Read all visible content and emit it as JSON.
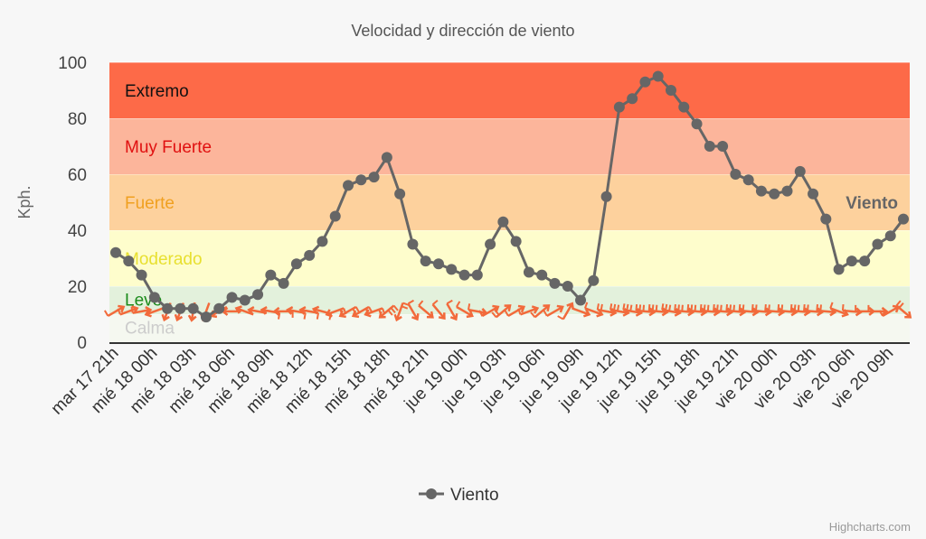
{
  "chart_data": {
    "type": "line",
    "title": "Velocidad y dirección de viento",
    "ylabel": "Kph.",
    "xlabel": "",
    "ylim": [
      0,
      100
    ],
    "yticks": [
      0,
      20,
      40,
      60,
      80,
      100
    ],
    "x_start_label_index": 0,
    "tick_labels": [
      "mar 17 21h",
      "mié 18 00h",
      "mié 18 03h",
      "mié 18 06h",
      "mié 18 09h",
      "mié 18 12h",
      "mié 18 15h",
      "mié 18 18h",
      "mié 18 21h",
      "jue 19 00h",
      "jue 19 03h",
      "jue 19 06h",
      "jue 19 09h",
      "jue 19 12h",
      "jue 19 15h",
      "jue 19 18h",
      "jue 19 21h",
      "vie 20 00h",
      "vie 20 03h",
      "vie 20 06h",
      "vie 20 09h"
    ],
    "series": [
      {
        "name": "Viento",
        "color": "#666666",
        "values": [
          32,
          29,
          24,
          16,
          12,
          12,
          12,
          9,
          12,
          16,
          15,
          17,
          24,
          21,
          28,
          31,
          36,
          45,
          56,
          58,
          59,
          66,
          53,
          35,
          29,
          28,
          26,
          24,
          24,
          35,
          43,
          36,
          25,
          24,
          21,
          20,
          15,
          22,
          52,
          84,
          87,
          93,
          95,
          90,
          84,
          78,
          70,
          70,
          60,
          58,
          54,
          53,
          54,
          61,
          53,
          44,
          26,
          29,
          29,
          35,
          38,
          44
        ]
      }
    ],
    "wind_direction_deg": [
      60,
      70,
      80,
      250,
      200,
      200,
      190,
      200,
      240,
      270,
      290,
      280,
      280,
      270,
      280,
      280,
      285,
      250,
      240,
      240,
      250,
      230,
      200,
      150,
      130,
      140,
      150,
      120,
      100,
      60,
      50,
      60,
      70,
      50,
      60,
      30,
      110,
      110,
      100,
      100,
      100,
      95,
      95,
      100,
      95,
      95,
      95,
      95,
      95,
      95,
      95,
      95,
      95,
      95,
      95,
      95,
      110,
      95,
      90,
      90,
      60,
      130
    ],
    "bands": [
      {
        "label": "Calma",
        "from": 0,
        "to": 10,
        "color": "#f5f8f0",
        "label_color": "#cccccc"
      },
      {
        "label": "Leve",
        "from": 10,
        "to": 20,
        "color": "#e3f1dc",
        "label_color": "#1a8a1a"
      },
      {
        "label": "Moderado",
        "from": 20,
        "to": 40,
        "color": "#fefdcc",
        "label_color": "#e8e030"
      },
      {
        "label": "Fuerte",
        "from": 40,
        "to": 60,
        "color": "#fdd19d",
        "label_color": "#f0a020"
      },
      {
        "label": "Muy Fuerte",
        "from": 60,
        "to": 80,
        "color": "#fcb59b",
        "label_color": "#e01010"
      },
      {
        "label": "Extremo",
        "from": 80,
        "to": 100,
        "color": "#fd6a48",
        "label_color": "#111111"
      }
    ],
    "wind_color": "#f26a3b",
    "series_end_label": "Viento",
    "legend": {
      "placement": "bottom-center",
      "label": "Viento"
    }
  },
  "credit": "Highcharts.com"
}
